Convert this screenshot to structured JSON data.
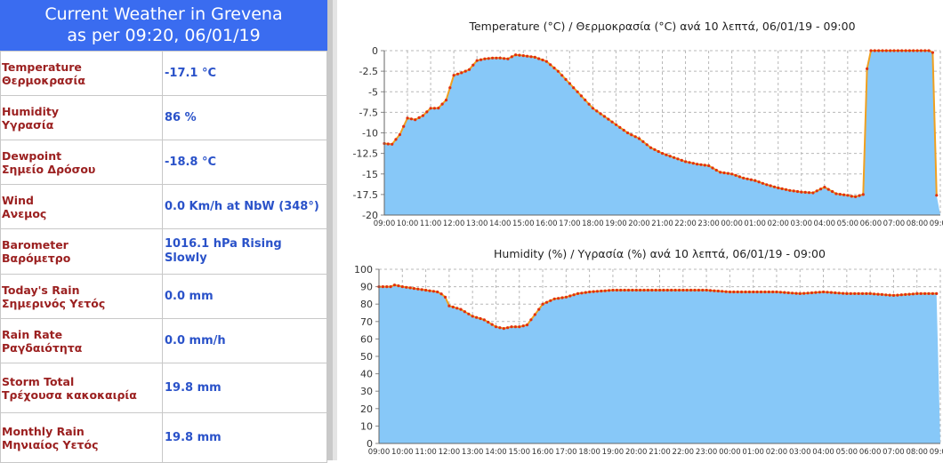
{
  "header": {
    "line1": "Current Weather in Grevena",
    "line2": "as per 09:20, 06/01/19"
  },
  "rows": [
    {
      "label_en": "Temperature",
      "label_gr": "Θερμοκρασία",
      "value": "-17.1 °C"
    },
    {
      "label_en": "Humidity",
      "label_gr": "Υγρασία",
      "value": "86 %"
    },
    {
      "label_en": "Dewpoint",
      "label_gr": "Σημείο Δρόσου",
      "value": "-18.8 °C"
    },
    {
      "label_en": "Wind",
      "label_gr": "Ανεμος",
      "value": "0.0 Km/h at NbW (348°)"
    },
    {
      "label_en": "Barometer",
      "label_gr": "Βαρόμετρο",
      "value": "1016.1 hPa Rising Slowly"
    },
    {
      "label_en": "Today's Rain",
      "label_gr": "Σημερινός Υετός",
      "value": "0.0 mm"
    },
    {
      "label_en": "Rain Rate",
      "label_gr": "Ραγδαιότητα",
      "value": "0.0 mm/h"
    },
    {
      "label_en": "Storm Total",
      "label_gr": "Τρέχουσα κακοκαιρία",
      "value": "19.8 mm"
    },
    {
      "label_en": "Monthly Rain",
      "label_gr": "Μηνιαίος Υετός",
      "value": "19.8 mm"
    }
  ],
  "colors": {
    "header_bg": "#3a6cf0",
    "label": "#9b2020",
    "value": "#2a52c9",
    "fill": "#87c8f8",
    "line": "#f0a020",
    "marker": "#e03010"
  },
  "chart_data": [
    {
      "type": "area",
      "title": "Temperature (°C) / Θερμοκρασία (°C) ανά 10 λεπτά,  06/01/19 - 09:00",
      "ylim": [
        -20,
        0
      ],
      "yticks": [
        0,
        -2.5,
        -5,
        -7.5,
        -10,
        -12.5,
        -15,
        -17.5,
        -20
      ],
      "ytick_labels": [
        "0",
        "-2.5",
        "-5",
        "-7.5",
        "-10",
        "-12.5",
        "-15",
        "-17.5",
        "-20"
      ],
      "xtick_labels": [
        "09:00",
        "10:00",
        "11:00",
        "12:00",
        "13:00",
        "14:00",
        "15:00",
        "16:00",
        "17:00",
        "18:00",
        "19:00",
        "20:00",
        "21:00",
        "22:00",
        "23:00",
        "00:00",
        "01:00",
        "02:00",
        "03:00",
        "04:00",
        "05:00",
        "06:00",
        "07:00",
        "08:00",
        "09:00"
      ],
      "keypoints": [
        [
          0,
          -11.3
        ],
        [
          0.33,
          -11.4
        ],
        [
          0.67,
          -10.2
        ],
        [
          1,
          -8.2
        ],
        [
          1.33,
          -8.4
        ],
        [
          1.67,
          -7.9
        ],
        [
          2,
          -7.0
        ],
        [
          2.33,
          -7.0
        ],
        [
          2.67,
          -6.0
        ],
        [
          3,
          -3.0
        ],
        [
          3.33,
          -2.7
        ],
        [
          3.67,
          -2.3
        ],
        [
          4,
          -1.2
        ],
        [
          4.33,
          -1.0
        ],
        [
          4.67,
          -0.9
        ],
        [
          5,
          -0.9
        ],
        [
          5.33,
          -1.0
        ],
        [
          5.67,
          -0.5
        ],
        [
          6,
          -0.6
        ],
        [
          6.5,
          -0.8
        ],
        [
          7,
          -1.3
        ],
        [
          7.5,
          -2.5
        ],
        [
          8,
          -4.0
        ],
        [
          8.5,
          -5.5
        ],
        [
          9,
          -7.0
        ],
        [
          9.5,
          -8.0
        ],
        [
          10,
          -9.0
        ],
        [
          10.5,
          -10.0
        ],
        [
          11,
          -10.7
        ],
        [
          11.5,
          -11.8
        ],
        [
          12,
          -12.5
        ],
        [
          12.5,
          -13.0
        ],
        [
          13,
          -13.5
        ],
        [
          13.5,
          -13.8
        ],
        [
          14,
          -14.0
        ],
        [
          14.5,
          -14.8
        ],
        [
          15,
          -15.0
        ],
        [
          15.5,
          -15.5
        ],
        [
          16,
          -15.8
        ],
        [
          16.5,
          -16.3
        ],
        [
          17,
          -16.7
        ],
        [
          17.5,
          -17.0
        ],
        [
          18,
          -17.2
        ],
        [
          18.5,
          -17.3
        ],
        [
          19,
          -16.6
        ],
        [
          19.5,
          -17.4
        ],
        [
          20,
          -17.6
        ],
        [
          20.3,
          -17.8
        ],
        [
          20.67,
          -17.5
        ],
        [
          20.75,
          -17.6
        ],
        [
          20.85,
          0
        ],
        [
          22.5,
          0
        ],
        [
          23.67,
          0
        ],
        [
          23.78,
          -17.6
        ],
        [
          24,
          -17.6
        ]
      ],
      "data_step_hours": 0.1667
    },
    {
      "type": "area",
      "title": "Humidity (%) / Υγρασία (%) ανά 10 λεπτά,  06/01/19 - 09:00",
      "ylim": [
        0,
        100
      ],
      "yticks": [
        0,
        10,
        20,
        30,
        40,
        50,
        60,
        70,
        80,
        90,
        100
      ],
      "ytick_labels": [
        "0",
        "10",
        "20",
        "30",
        "40",
        "50",
        "60",
        "70",
        "80",
        "90",
        "100"
      ],
      "xtick_labels": [
        "09:00",
        "10:00",
        "11:00",
        "12:00",
        "13:00",
        "14:00",
        "15:00",
        "16:00",
        "17:00",
        "18:00",
        "19:00",
        "20:00",
        "21:00",
        "22:00",
        "23:00",
        "00:00",
        "01:00",
        "02:00",
        "03:00",
        "04:00",
        "05:00",
        "06:00",
        "07:00",
        "08:00",
        "09:00"
      ],
      "keypoints": [
        [
          0,
          90
        ],
        [
          0.5,
          90
        ],
        [
          0.67,
          91
        ],
        [
          1,
          90
        ],
        [
          1.5,
          89
        ],
        [
          2,
          88
        ],
        [
          2.5,
          87
        ],
        [
          2.8,
          85
        ],
        [
          3,
          79
        ],
        [
          3.5,
          77
        ],
        [
          4,
          73
        ],
        [
          4.5,
          71
        ],
        [
          5,
          67
        ],
        [
          5.33,
          66
        ],
        [
          5.67,
          67
        ],
        [
          6,
          67
        ],
        [
          6.33,
          68
        ],
        [
          6.67,
          74
        ],
        [
          7,
          80
        ],
        [
          7.5,
          83
        ],
        [
          8,
          84
        ],
        [
          8.5,
          86
        ],
        [
          9,
          87
        ],
        [
          10,
          88
        ],
        [
          11,
          88
        ],
        [
          12,
          88
        ],
        [
          13,
          88
        ],
        [
          14,
          88
        ],
        [
          15,
          87
        ],
        [
          16,
          87
        ],
        [
          17,
          87
        ],
        [
          18,
          86
        ],
        [
          19,
          87
        ],
        [
          20,
          86
        ],
        [
          21,
          86
        ],
        [
          22,
          85
        ],
        [
          23,
          86
        ],
        [
          24,
          86
        ]
      ],
      "data_step_hours": 0.1667
    }
  ]
}
